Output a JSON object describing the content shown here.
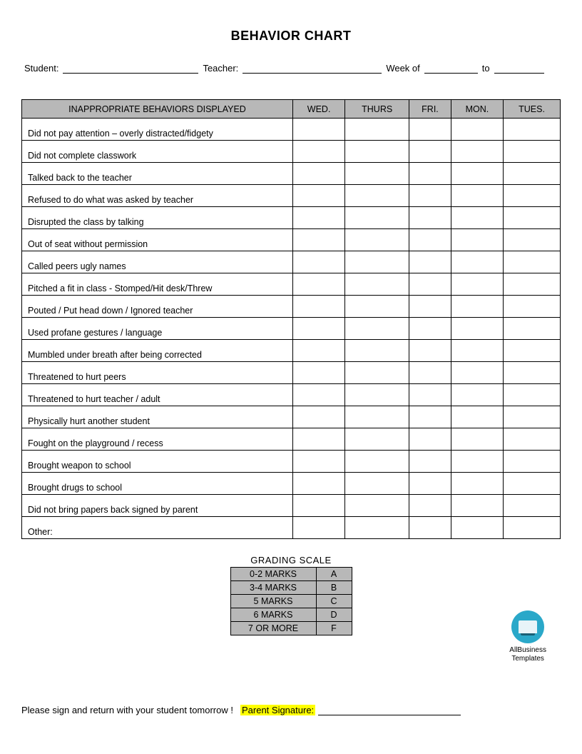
{
  "title": "BEHAVIOR CHART",
  "info": {
    "student_label": "Student:",
    "teacher_label": "Teacher:",
    "week_label": "Week of",
    "to_label": "to"
  },
  "table": {
    "header_first": "INAPPROPRIATE BEHAVIORS DISPLAYED",
    "days": [
      "WED.",
      "THURS",
      "FRI.",
      "MON.",
      "TUES."
    ],
    "rows": [
      "Did not pay attention – overly distracted/fidgety",
      "Did not complete classwork",
      "Talked back to the teacher",
      "Refused to do what was asked by teacher",
      "Disrupted the class by talking",
      "Out of seat without permission",
      "Called peers ugly names",
      "Pitched a fit in class -  Stomped/Hit desk/Threw",
      "Pouted / Put head down / Ignored teacher",
      "Used profane gestures / language",
      "Mumbled under breath after being corrected",
      "Threatened to hurt peers",
      "Threatened to hurt teacher / adult",
      "Physically hurt another student",
      "Fought on the playground / recess",
      "Brought weapon to school",
      "Brought drugs to school",
      "Did not bring papers back signed by parent",
      "Other:"
    ]
  },
  "grading": {
    "title": "GRADING SCALE",
    "rows": [
      {
        "range": "0-2 MARKS",
        "grade": "A"
      },
      {
        "range": "3-4 MARKS",
        "grade": "B"
      },
      {
        "range": "5 MARKS",
        "grade": "C"
      },
      {
        "range": "6 MARKS",
        "grade": "D"
      },
      {
        "range": "7 OR MORE",
        "grade": "F"
      }
    ]
  },
  "logo": {
    "line1": "AllBusiness",
    "line2": "Templates"
  },
  "footer": {
    "instruction": "Please sign and return with your student tomorrow !",
    "sig_label": "Parent Signature:"
  },
  "colors": {
    "header_bg": "#b8b8b8",
    "highlight": "#ffff00",
    "logo_bg": "#2aa8c9",
    "text": "#000000",
    "page_bg": "#ffffff"
  }
}
